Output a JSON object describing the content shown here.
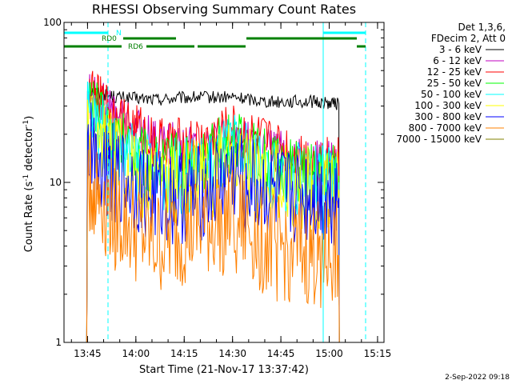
{
  "chart_data": {
    "type": "line",
    "title": "RHESSI Observing Summary Count Rates",
    "xlabel": "Start Time (21-Nov-17 13:37:42)",
    "ylabel_main": "Count Rate (s",
    "ylabel_exp": "-1",
    "ylabel_tail": " detector",
    "ylabel_end": ")",
    "y_scale": "log",
    "ylim": [
      1,
      100
    ],
    "xlim": [
      "13:37:42",
      "15:17:00"
    ],
    "y_ticks": [
      "1",
      "10",
      "100"
    ],
    "x_ticks": [
      "13:45",
      "14:00",
      "14:15",
      "14:30",
      "14:45",
      "15:00",
      "15:15"
    ],
    "legend_header": [
      "Det 1,3,6,",
      "FDecim 2, Att 0"
    ],
    "series": [
      {
        "name": "3 - 6 keV",
        "color": "#000000",
        "values": [
          [
            13.75,
            38
          ],
          [
            13.9,
            34
          ],
          [
            14.1,
            33
          ],
          [
            14.3,
            34
          ],
          [
            14.5,
            34
          ],
          [
            14.7,
            32
          ],
          [
            14.9,
            32
          ],
          [
            15.05,
            31
          ]
        ]
      },
      {
        "name": "6 - 12 keV",
        "color": "#c000c0",
        "values": [
          [
            13.75,
            37
          ],
          [
            13.9,
            27
          ],
          [
            14.1,
            18
          ],
          [
            14.3,
            17
          ],
          [
            14.5,
            19
          ],
          [
            14.7,
            16
          ],
          [
            14.9,
            14
          ],
          [
            15.05,
            13
          ]
        ]
      },
      {
        "name": "12 - 25 keV",
        "color": "#ff0000",
        "values": [
          [
            13.75,
            36
          ],
          [
            13.9,
            26
          ],
          [
            14.1,
            18
          ],
          [
            14.3,
            17
          ],
          [
            14.5,
            21
          ],
          [
            14.7,
            17
          ],
          [
            14.9,
            14
          ],
          [
            15.05,
            13
          ]
        ]
      },
      {
        "name": "25 - 50 keV",
        "color": "#00ff00",
        "values": [
          [
            13.75,
            32
          ],
          [
            13.9,
            19
          ],
          [
            14.1,
            13
          ],
          [
            14.3,
            13
          ],
          [
            14.5,
            18
          ],
          [
            14.7,
            13
          ],
          [
            14.9,
            11
          ],
          [
            15.05,
            11
          ]
        ]
      },
      {
        "name": "50 - 100 keV",
        "color": "#00ffff",
        "values": [
          [
            13.75,
            28
          ],
          [
            13.9,
            16
          ],
          [
            14.1,
            11
          ],
          [
            14.3,
            11
          ],
          [
            14.5,
            16
          ],
          [
            14.7,
            11
          ],
          [
            14.9,
            10
          ],
          [
            15.05,
            10
          ]
        ]
      },
      {
        "name": "100 - 300 keV",
        "color": "#ffff00",
        "values": [
          [
            13.75,
            24
          ],
          [
            13.9,
            14
          ],
          [
            14.1,
            10
          ],
          [
            14.3,
            10
          ],
          [
            14.5,
            13
          ],
          [
            14.7,
            10
          ],
          [
            14.9,
            9
          ],
          [
            15.05,
            9
          ]
        ]
      },
      {
        "name": "300 - 800 keV",
        "color": "#0000ff",
        "values": [
          [
            13.75,
            17
          ],
          [
            13.9,
            11
          ],
          [
            14.1,
            8
          ],
          [
            14.3,
            8
          ],
          [
            14.5,
            11
          ],
          [
            14.7,
            8
          ],
          [
            14.9,
            8
          ],
          [
            15.05,
            8
          ]
        ]
      },
      {
        "name": "800 - 7000 keV",
        "color": "#ff8000",
        "values": [
          [
            13.75,
            10
          ],
          [
            13.9,
            6
          ],
          [
            14.1,
            4
          ],
          [
            14.3,
            5
          ],
          [
            14.5,
            6
          ],
          [
            14.7,
            4
          ],
          [
            14.9,
            3.5
          ],
          [
            15.05,
            3.5
          ]
        ]
      },
      {
        "name": "7000 - 15000 keV",
        "color": "#808000",
        "values": []
      }
    ],
    "grid": false,
    "legend_placement": "right",
    "annotations": [
      "N",
      "RD0",
      "RD6"
    ],
    "footer": "2-Sep-2022 09:18"
  }
}
